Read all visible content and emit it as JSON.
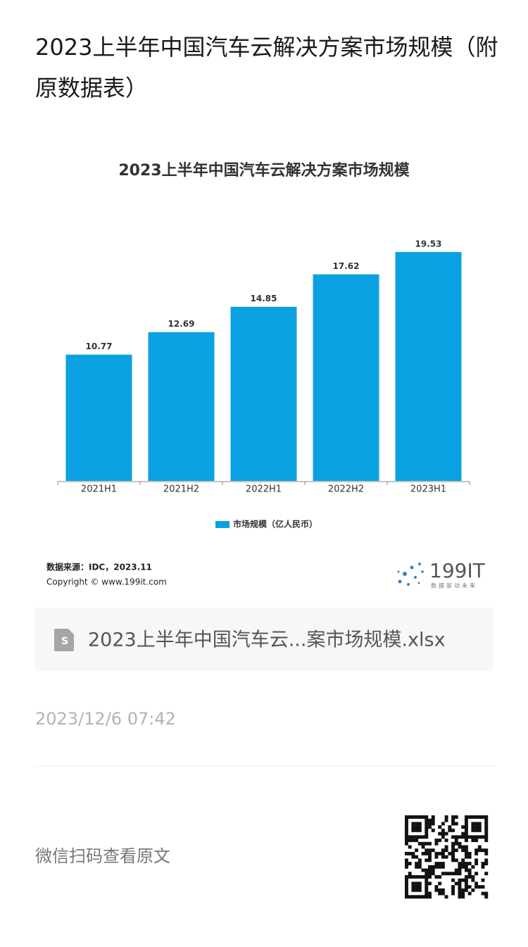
{
  "header": {
    "title": "2023上半年中国汽车云解决方案市场规模（附原数据表）"
  },
  "chart_data": {
    "type": "bar",
    "title": "2023上半年中国汽车云解决方案市场规模",
    "categories": [
      "2021H1",
      "2021H2",
      "2022H1",
      "2022H2",
      "2023H1"
    ],
    "series": [
      {
        "name": "市场规模（亿人民币）",
        "color": "#0aa1e2",
        "values": [
          10.77,
          12.69,
          14.85,
          17.62,
          19.53
        ]
      }
    ],
    "ylim": [
      0,
      20
    ],
    "legend": "bottom"
  },
  "source": {
    "line1": "数据来源：IDC，2023.11",
    "line2": "Copyright © www.199it.com",
    "logo": "199IT",
    "logo_slogan": "数据驱动未来"
  },
  "attachment": {
    "filename": "2023上半年中国汽车云...案市场规模.xlsx"
  },
  "date": "2023/12/6 07:42",
  "footer": {
    "prompt": "微信扫码查看原文"
  }
}
